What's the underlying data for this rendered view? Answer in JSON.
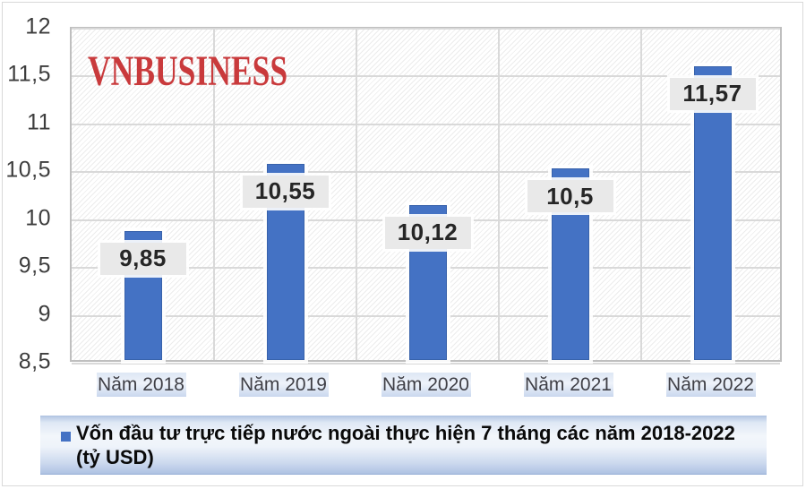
{
  "watermark": "VNBUSINESS",
  "legend": {
    "line1": "Vốn đầu tư trực tiếp nước ngoài thực hiện 7 tháng các năm 2018-2022",
    "line2": "(tỷ USD)",
    "marker_color": "#4472c4"
  },
  "colors": {
    "bar": "#4472c4",
    "gridline": "#d9d9d9",
    "plot_border": "#bfbfbf",
    "datalabel_bg": "#e9e9e9",
    "watermark_red": "#c93a3c",
    "axis_text": "#3d3d3d"
  },
  "chart_data": {
    "type": "bar",
    "title": "",
    "categories": [
      "Năm 2018",
      "Năm 2019",
      "Năm 2020",
      "Năm 2021",
      "Năm 2022"
    ],
    "values": [
      9.85,
      10.55,
      10.12,
      10.5,
      11.57
    ],
    "value_labels": [
      "9,85",
      "10,55",
      "10,12",
      "10,5",
      "11,57"
    ],
    "series_name": "Vốn đầu tư trực tiếp nước ngoài thực hiện 7 tháng các năm 2018-2022 (tỷ USD)",
    "xlabel": "",
    "ylabel": "",
    "ylim": [
      8.5,
      12
    ],
    "yticks": [
      8.5,
      9,
      9.5,
      10,
      10.5,
      11,
      11.5,
      12
    ],
    "ytick_labels": [
      "8,5",
      "9",
      "9,5",
      "10",
      "10,5",
      "11",
      "11,5",
      "12"
    ],
    "bar_color": "#4472c4",
    "grid": true,
    "legend_position": "bottom",
    "plot_background": "diagonal-hatch"
  }
}
